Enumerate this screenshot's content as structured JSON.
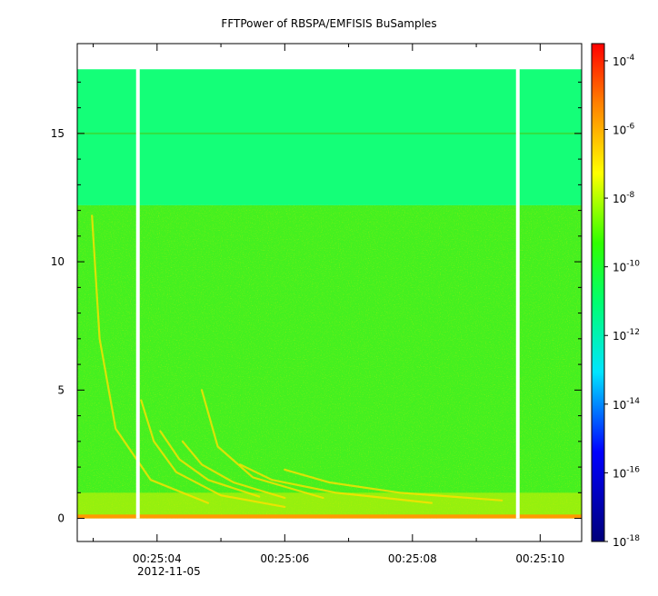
{
  "chart_data": {
    "type": "heatmap",
    "title": "FFTPower of RBSPA/EMFISIS  BuSamples",
    "xlabel": "",
    "ylabel": "",
    "x_ticks": [
      "00:25:04",
      "00:25:06",
      "00:25:08",
      "00:25:10"
    ],
    "x_date_label": "2012-11-05",
    "x_range_seconds": [
      2.75,
      10.65
    ],
    "x_tick_values_seconds": [
      4,
      6,
      8,
      10
    ],
    "y_ticks": [
      "0",
      "5",
      "10",
      "15"
    ],
    "y_tick_values": [
      0,
      5,
      10,
      15
    ],
    "ylim": [
      -0.9,
      18.5
    ],
    "data_ymax": 17.5,
    "noise_band_boundary": 12.2,
    "persistent_line_y": 15.0,
    "data_gaps_seconds": [
      3.7,
      9.65
    ],
    "colorbar": {
      "scale": "log",
      "range_exponents": [
        -18,
        -3.5
      ],
      "tick_base": "10",
      "tick_exponents": [
        "-4",
        "-6",
        "-8",
        "-10",
        "-12",
        "-14",
        "-16",
        "-18"
      ],
      "tick_values": [
        -4,
        -6,
        -8,
        -10,
        -12,
        -14,
        -16,
        -18
      ],
      "colors": [
        "#000080",
        "#0000ff",
        "#00ffff",
        "#00ff00",
        "#ffff00",
        "#ff8000",
        "#ff0000"
      ]
    }
  }
}
